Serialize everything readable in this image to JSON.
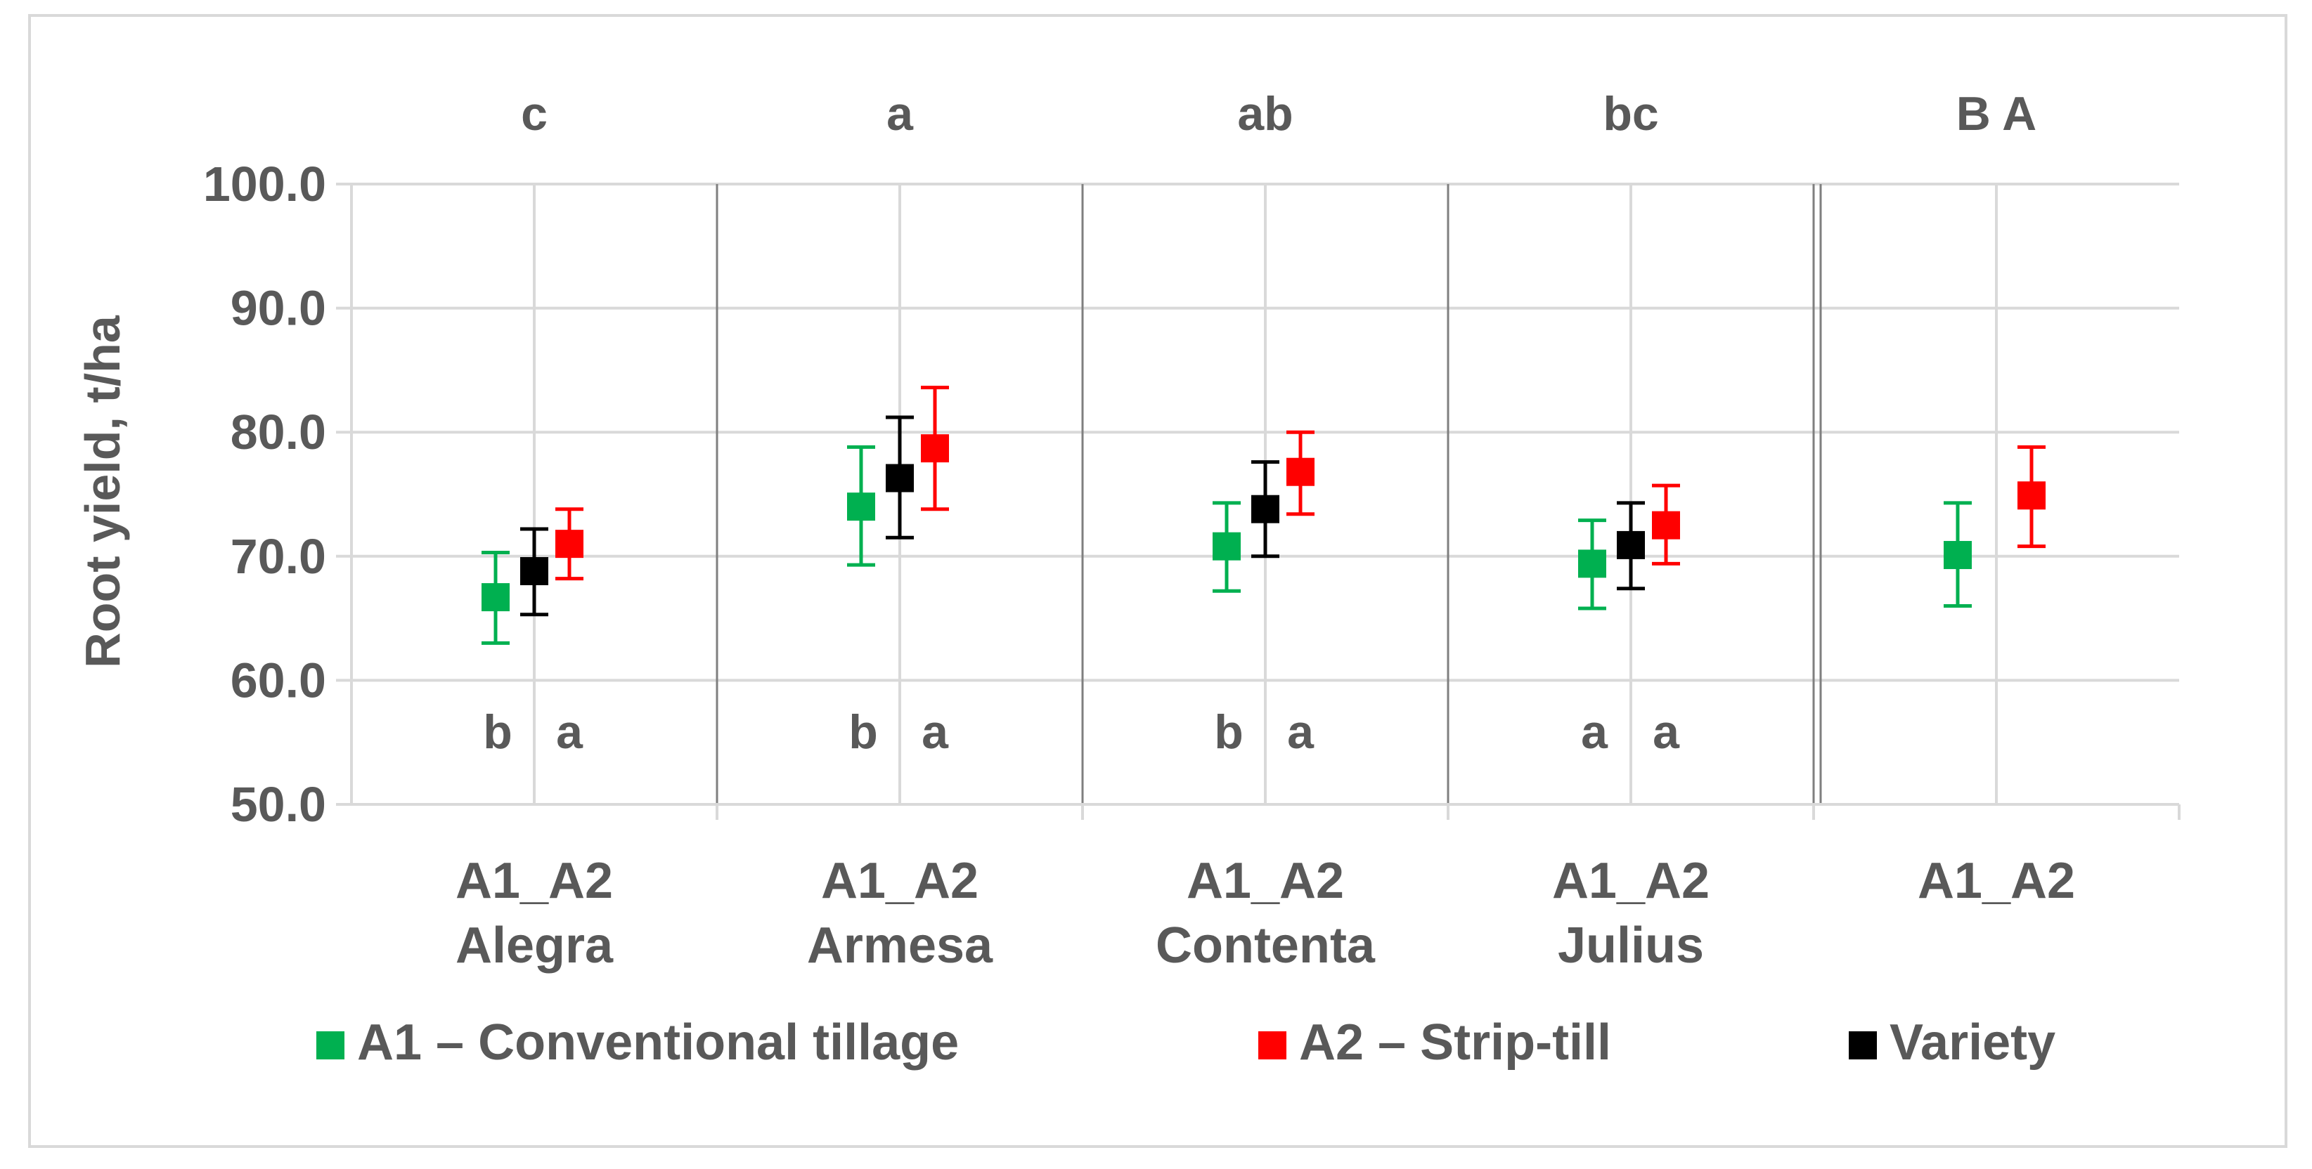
{
  "chart_data": {
    "type": "scatter",
    "ylabel": "Root yield, t/ha",
    "ylim": [
      50,
      100
    ],
    "yticks": [
      "50.0",
      "60.0",
      "70.0",
      "80.0",
      "90.0",
      "100.0"
    ],
    "grid": true,
    "legend_position": "bottom",
    "groups": [
      {
        "label_top": "A1_A2",
        "label_bottom": "Alegra",
        "top_letter": "c",
        "bottom_letters": [
          "b",
          "a"
        ],
        "points": {
          "A1": {
            "y": 66.7,
            "low": 63.0,
            "high": 70.3
          },
          "A2": {
            "y": 71.0,
            "low": 68.2,
            "high": 73.8
          },
          "Variety": {
            "y": 68.8,
            "low": 65.3,
            "high": 72.2
          }
        }
      },
      {
        "label_top": "A1_A2",
        "label_bottom": "Armesa",
        "top_letter": "a",
        "bottom_letters": [
          "b",
          "a"
        ],
        "points": {
          "A1": {
            "y": 74.0,
            "low": 69.3,
            "high": 78.8
          },
          "A2": {
            "y": 78.7,
            "low": 73.8,
            "high": 83.6
          },
          "Variety": {
            "y": 76.3,
            "low": 71.5,
            "high": 81.2
          }
        }
      },
      {
        "label_top": "A1_A2",
        "label_bottom": "Contenta",
        "top_letter": "ab",
        "bottom_letters": [
          "b",
          "a"
        ],
        "points": {
          "A1": {
            "y": 70.8,
            "low": 67.2,
            "high": 74.3
          },
          "A2": {
            "y": 76.8,
            "low": 73.4,
            "high": 80.0
          },
          "Variety": {
            "y": 73.8,
            "low": 70.0,
            "high": 77.6
          }
        }
      },
      {
        "label_top": "A1_A2",
        "label_bottom": "Julius",
        "top_letter": "bc",
        "bottom_letters": [
          "a",
          "a"
        ],
        "points": {
          "A1": {
            "y": 69.4,
            "low": 65.8,
            "high": 72.9
          },
          "A2": {
            "y": 72.5,
            "low": 69.4,
            "high": 75.7
          },
          "Variety": {
            "y": 70.9,
            "low": 67.4,
            "high": 74.3
          }
        }
      },
      {
        "label_top": "A1_A2",
        "label_bottom": "",
        "top_letter": "B  A",
        "bottom_letters": [],
        "points": {
          "A1": {
            "y": 70.1,
            "low": 66.0,
            "high": 74.3
          },
          "A2": {
            "y": 74.9,
            "low": 70.8,
            "high": 78.8
          }
        }
      }
    ],
    "series": [
      {
        "key": "A1",
        "name": "A1 – Conventional tillage",
        "color": "#00b050"
      },
      {
        "key": "A2",
        "name": "A2 – Strip-till",
        "color": "#ff0000"
      },
      {
        "key": "Variety",
        "name": "Variety",
        "color": "#000000"
      }
    ],
    "colors": {
      "grid": "#d9d9d9",
      "separator": "#7f7f7f",
      "text": "#595959",
      "frame": "#d9d9d9"
    }
  }
}
